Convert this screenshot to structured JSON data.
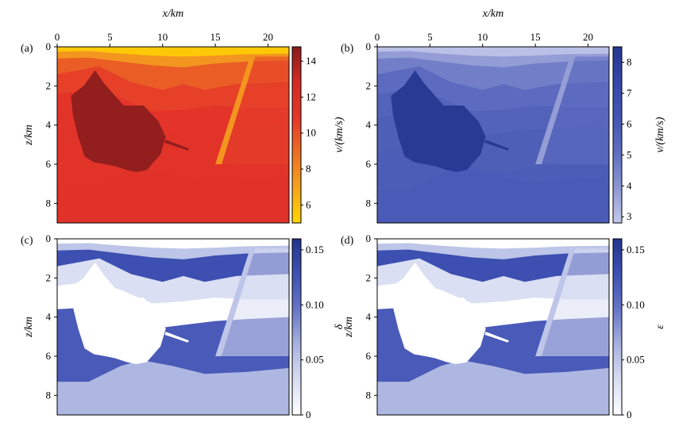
{
  "chart_data": [
    {
      "type": "heatmap",
      "panel_label": "(a)",
      "xlabel": "x/km",
      "ylabel": "z/km",
      "colorbar_label": "v/(km/s)",
      "xlim": [
        0,
        22
      ],
      "ylim": [
        9,
        0
      ],
      "xticks": [
        "0",
        "5",
        "10",
        "15",
        "20"
      ],
      "yticks": [
        "0",
        "2",
        "4",
        "6",
        "8"
      ],
      "clim": [
        5,
        14.8
      ],
      "cticks": [
        "6",
        "8",
        "10",
        "12",
        "14"
      ],
      "colormap": [
        "#ffd600",
        "#f6a31c",
        "#ec6f24",
        "#e5352a",
        "#d42a22",
        "#861c1c"
      ],
      "layers": [
        {
          "top_km": 0.0,
          "value": 5.5
        },
        {
          "top_km": 0.25,
          "value": 7.5
        },
        {
          "top_km": 0.7,
          "value": 9.5
        },
        {
          "top_km": 1.5,
          "value": 10.5
        },
        {
          "top_km": 2.4,
          "value": 11.0
        },
        {
          "top_km": 3.6,
          "value": 11.2
        },
        {
          "top_km": 5.4,
          "value": 11.3
        },
        {
          "top_km": 7.2,
          "value": 11.4
        }
      ],
      "salt_body_value": 14.5
    },
    {
      "type": "heatmap",
      "panel_label": "(b)",
      "xlabel": "x/km",
      "ylabel": "",
      "colorbar_label": "v/(km/s)",
      "xlim": [
        0,
        22
      ],
      "ylim": [
        9,
        0
      ],
      "xticks": [
        "0",
        "5",
        "10",
        "15",
        "20"
      ],
      "yticks": [
        "0",
        "2",
        "4",
        "6",
        "8"
      ],
      "clim": [
        2.8,
        8.5
      ],
      "cticks": [
        "3",
        "4",
        "5",
        "6",
        "7",
        "8"
      ],
      "colormap": [
        "#c3c9ea",
        "#8d97d2",
        "#5f6ec0",
        "#4456b3",
        "#3547a8",
        "#253890"
      ],
      "layers": [
        {
          "top_km": 0.0,
          "value": 3.0
        },
        {
          "top_km": 0.25,
          "value": 3.8
        },
        {
          "top_km": 0.7,
          "value": 4.6
        },
        {
          "top_km": 1.5,
          "value": 5.2
        },
        {
          "top_km": 2.4,
          "value": 5.6
        },
        {
          "top_km": 3.6,
          "value": 5.8
        },
        {
          "top_km": 5.4,
          "value": 5.9
        },
        {
          "top_km": 7.2,
          "value": 6.0
        }
      ],
      "salt_body_value": 8.3
    },
    {
      "type": "heatmap",
      "panel_label": "(c)",
      "xlabel": "",
      "ylabel": "z/km",
      "colorbar_label": "δ",
      "xlim": [
        0,
        22
      ],
      "ylim": [
        9,
        0
      ],
      "xticks": [],
      "yticks": [
        "0",
        "2",
        "4",
        "6",
        "8"
      ],
      "clim": [
        0,
        0.16
      ],
      "cticks": [
        "0",
        "0.05",
        "0.10",
        "0.15"
      ],
      "colormap": [
        "#ffffff",
        "#d8ddf2",
        "#a8b2e0",
        "#6675c6",
        "#3f51b3",
        "#23358e"
      ],
      "layers": [
        {
          "top_km": 0.0,
          "value": 0.0
        },
        {
          "top_km": 0.25,
          "value": 0.05
        },
        {
          "top_km": 0.7,
          "value": 0.13
        },
        {
          "top_km": 1.5,
          "value": 0.03
        },
        {
          "top_km": 2.4,
          "value": 0.0
        },
        {
          "top_km": 3.6,
          "value": 0.12
        },
        {
          "top_km": 5.4,
          "value": 0.12
        },
        {
          "top_km": 7.2,
          "value": 0.06
        }
      ],
      "salt_body_value": 0.0
    },
    {
      "type": "heatmap",
      "panel_label": "(d)",
      "xlabel": "",
      "ylabel": "z/km",
      "colorbar_label": "ε",
      "xlim": [
        0,
        22
      ],
      "ylim": [
        9,
        0
      ],
      "xticks": [],
      "yticks": [
        "0",
        "2",
        "4",
        "6",
        "8"
      ],
      "clim": [
        0,
        0.16
      ],
      "cticks": [
        "0",
        "0.05",
        "0.10",
        "0.15"
      ],
      "colormap": [
        "#ffffff",
        "#d8ddf2",
        "#a8b2e0",
        "#6675c6",
        "#3f51b3",
        "#23358e"
      ],
      "layers": [
        {
          "top_km": 0.0,
          "value": 0.0
        },
        {
          "top_km": 0.25,
          "value": 0.05
        },
        {
          "top_km": 0.7,
          "value": 0.13
        },
        {
          "top_km": 1.5,
          "value": 0.03
        },
        {
          "top_km": 2.4,
          "value": 0.0
        },
        {
          "top_km": 3.6,
          "value": 0.12
        },
        {
          "top_km": 5.4,
          "value": 0.12
        },
        {
          "top_km": 7.2,
          "value": 0.06
        }
      ],
      "salt_body_value": 0.0
    }
  ]
}
